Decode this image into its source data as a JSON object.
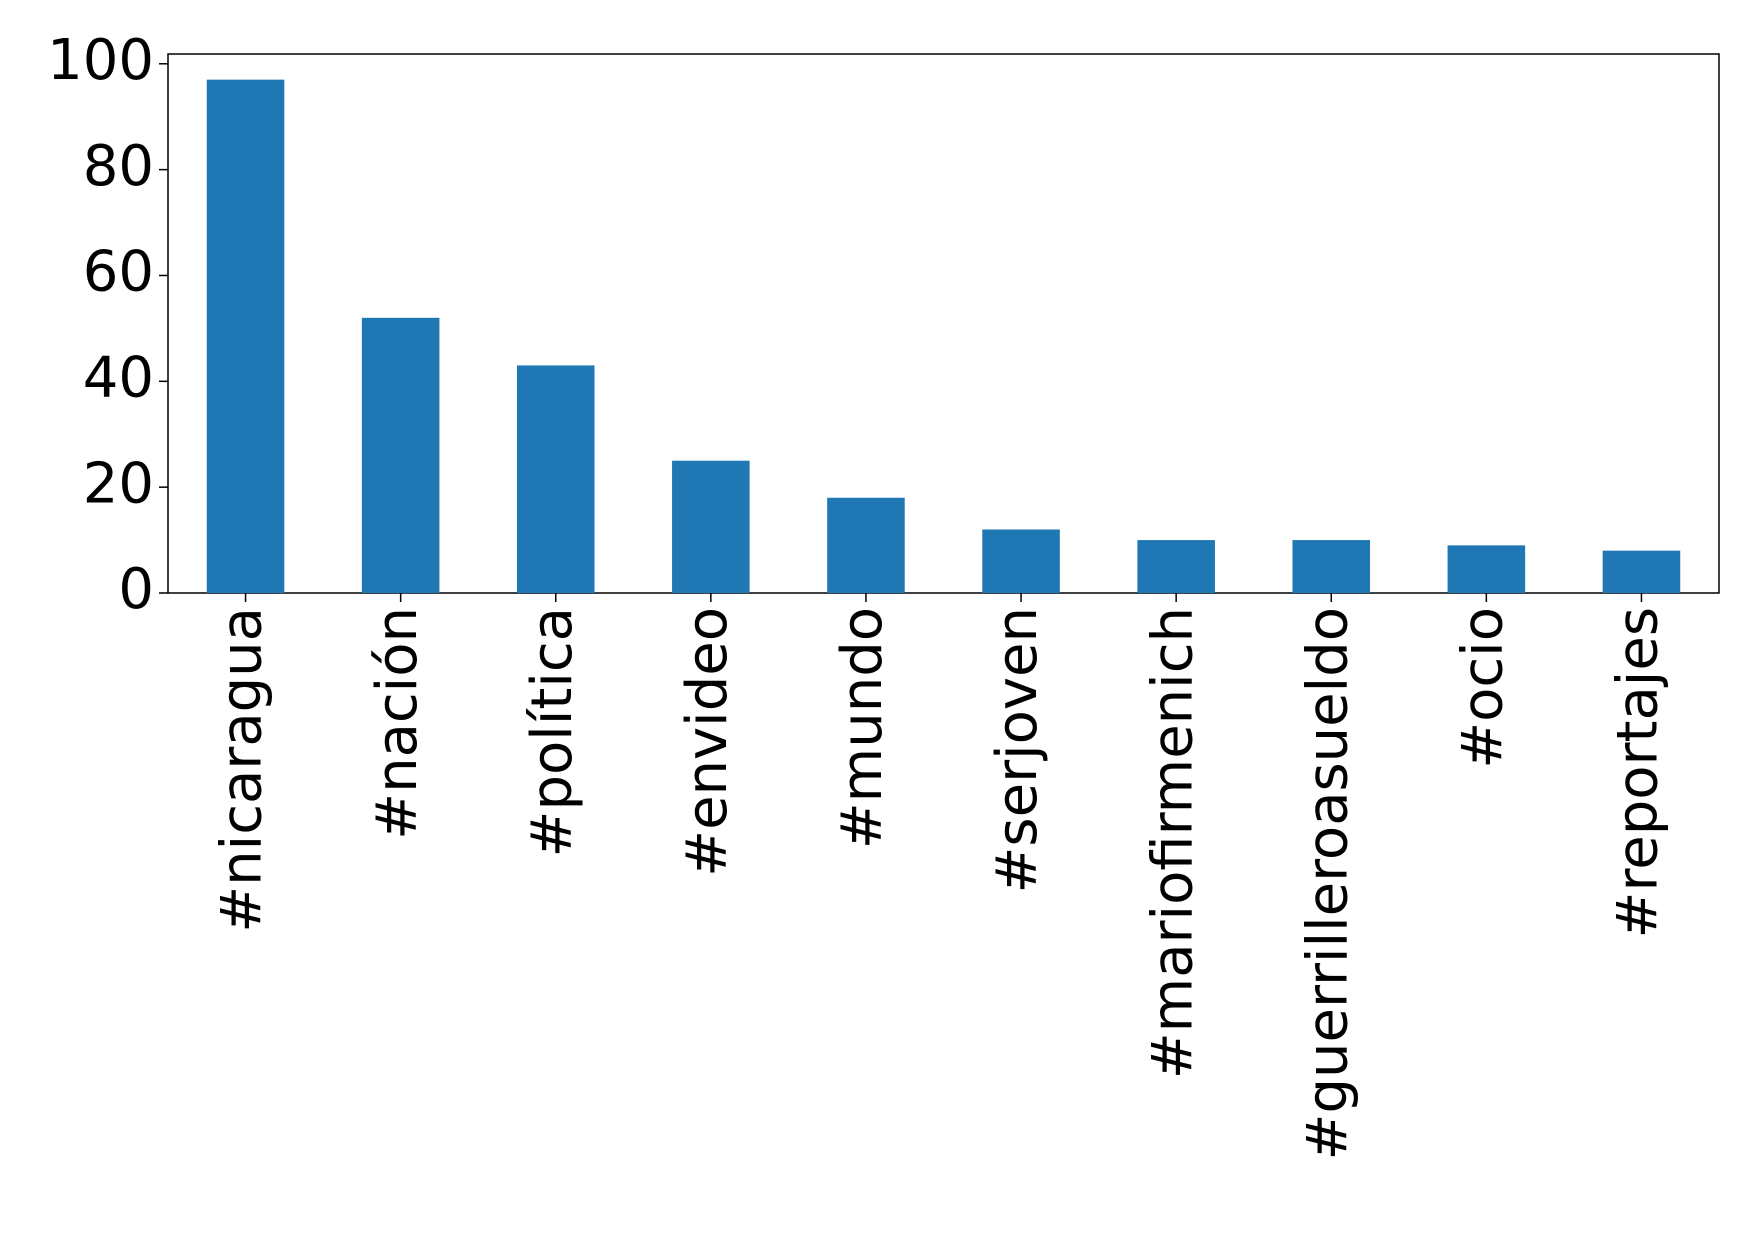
{
  "chart_data": {
    "type": "bar",
    "categories": [
      "#nicaragua",
      "#nación",
      "#política",
      "#envideo",
      "#mundo",
      "#serjoven",
      "#mariofirmenich",
      "#guerrilleroasueldo",
      "#ocio",
      "#reportajes"
    ],
    "values": [
      97,
      52,
      43,
      25,
      18,
      12,
      10,
      10,
      9,
      8
    ],
    "color": "#1f77b4",
    "ylim": [
      0,
      101.85
    ],
    "yticks": [
      0,
      20,
      40,
      60,
      80,
      100
    ],
    "grid": false
  }
}
